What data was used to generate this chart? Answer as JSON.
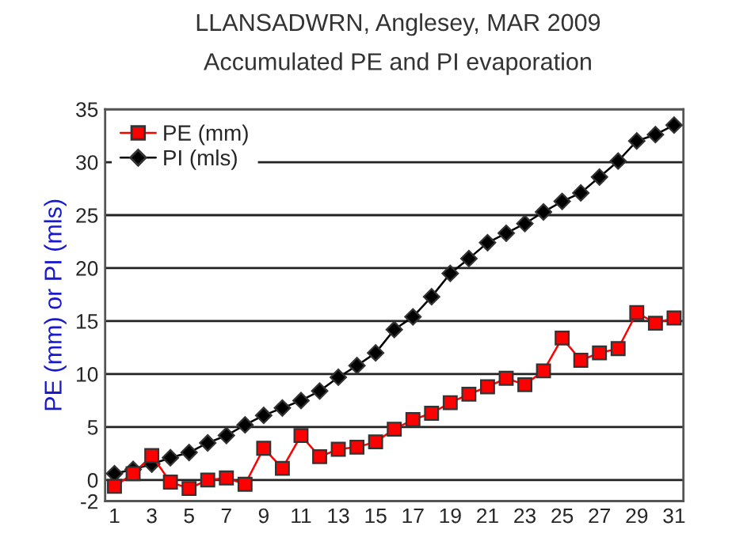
{
  "chart_data": {
    "type": "line",
    "title": "LLANSADWRN, Anglesey, MAR 2009",
    "subtitle": "Accumulated PE and PI evaporation",
    "ylabel": "PE (mm) or PI (mls)",
    "x": [
      1,
      2,
      3,
      4,
      5,
      6,
      7,
      8,
      9,
      10,
      11,
      12,
      13,
      14,
      15,
      16,
      17,
      18,
      19,
      20,
      21,
      22,
      23,
      24,
      25,
      26,
      27,
      28,
      29,
      30,
      31
    ],
    "series": [
      {
        "name": "PE (mm)",
        "color": "#ff0000",
        "marker": "square",
        "values": [
          -0.6,
          0.6,
          2.3,
          -0.2,
          -0.8,
          0,
          0.2,
          -0.4,
          3.0,
          1.1,
          4.2,
          2.2,
          2.9,
          3.1,
          3.6,
          4.8,
          5.7,
          6.3,
          7.3,
          8.1,
          8.8,
          9.6,
          9.0,
          10.3,
          13.4,
          11.3,
          12.0,
          12.4,
          15.8,
          14.8,
          15.3
        ]
      },
      {
        "name": "PI (mls)",
        "color": "#000000",
        "marker": "diamond",
        "values": [
          0.6,
          1.0,
          1.5,
          2.1,
          2.6,
          3.5,
          4.2,
          5.2,
          6.1,
          6.8,
          7.5,
          8.4,
          9.7,
          10.8,
          12.0,
          14.2,
          15.4,
          17.3,
          19.5,
          20.9,
          22.4,
          23.3,
          24.2,
          25.3,
          26.3,
          27.1,
          28.6,
          30.1,
          32.0,
          32.6,
          33.5
        ]
      }
    ],
    "xlim": [
      0.5,
      31.5
    ],
    "xticks": [
      1,
      3,
      5,
      7,
      9,
      11,
      13,
      15,
      17,
      19,
      21,
      23,
      25,
      27,
      29,
      31
    ],
    "ylim": [
      -2,
      35
    ],
    "yticks": [
      -2,
      0,
      5,
      10,
      15,
      20,
      25,
      30,
      35
    ],
    "grid": "y",
    "legend": "top left",
    "line_style": "solid"
  }
}
